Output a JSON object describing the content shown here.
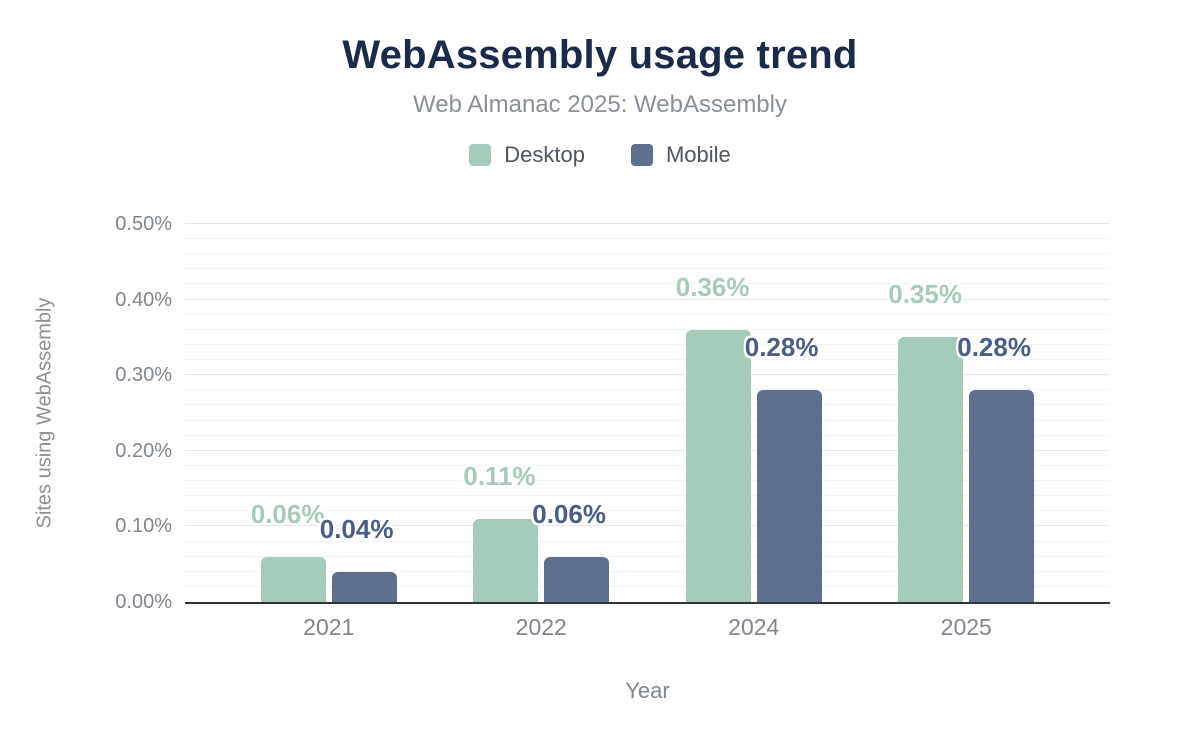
{
  "chart_data": {
    "type": "bar",
    "title": "WebAssembly usage trend",
    "subtitle": "Web Almanac 2025: WebAssembly",
    "xlabel": "Year",
    "ylabel": "Sites using WebAssembly",
    "categories": [
      "2021",
      "2022",
      "2024",
      "2025"
    ],
    "series": [
      {
        "name": "Desktop",
        "color": "#a7cbb9",
        "label_color": "#a7cbb9",
        "values": [
          0.06,
          0.11,
          0.36,
          0.35
        ],
        "labels": [
          "0.06%",
          "0.11%",
          "0.36%",
          "0.35%"
        ]
      },
      {
        "name": "Mobile",
        "color": "#5f708e",
        "label_color": "#4a5e85",
        "values": [
          0.04,
          0.06,
          0.28,
          0.28
        ],
        "labels": [
          "0.04%",
          "0.06%",
          "0.28%",
          "0.28%"
        ]
      }
    ],
    "ylim": [
      0,
      0.5
    ],
    "y_major_step": 0.1,
    "y_minor_step": 0.02,
    "y_tick_labels": [
      "0.00%",
      "0.10%",
      "0.20%",
      "0.30%",
      "0.40%",
      "0.50%"
    ],
    "grid": true,
    "legend_position": "top"
  },
  "colors": {
    "background": "#ffffff",
    "title": "#1a2b49",
    "subtitle": "#8a9099",
    "axis_text": "#80868e",
    "legend_text": "#4d555e",
    "grid_major": "#e6e7e9",
    "grid_minor": "#f4f4f6",
    "axis_line": "#31363c"
  }
}
